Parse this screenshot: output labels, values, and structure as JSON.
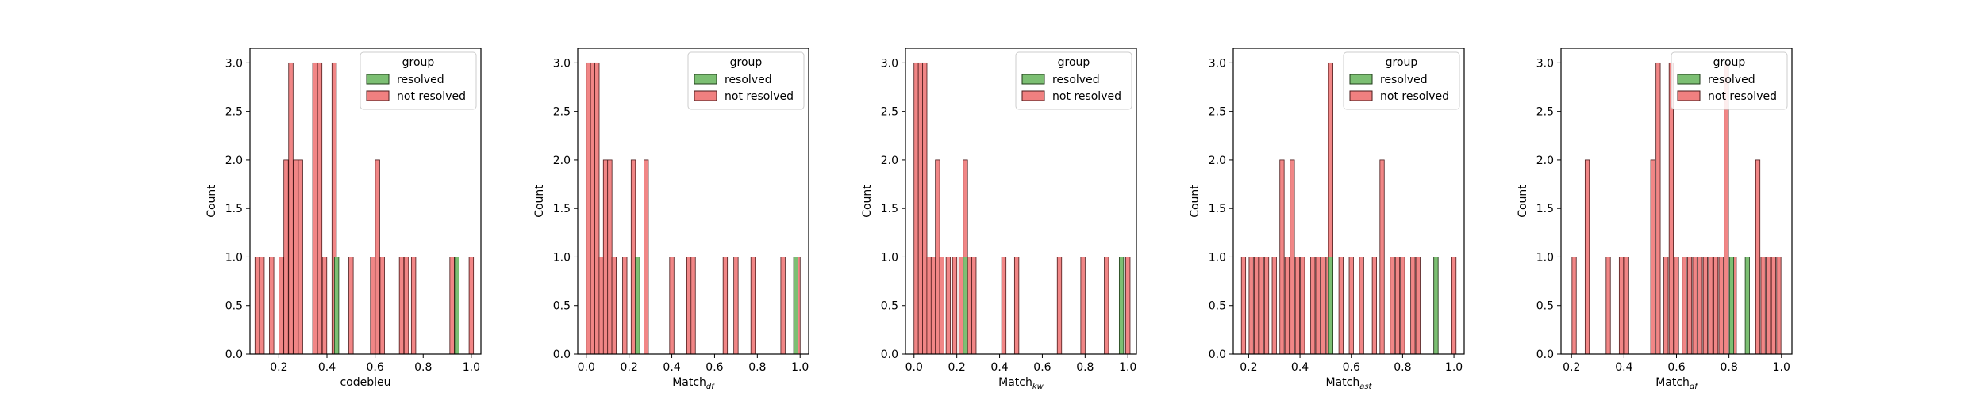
{
  "palette": {
    "resolved_fill": "#7cbf73",
    "resolved_edge": "#1f3b1a",
    "not_resolved_fill": "#f08080",
    "not_resolved_edge": "#4a1b1b",
    "axes": "#000000",
    "legend_edge": "#cccccc"
  },
  "legend": {
    "title": "group",
    "resolved": "resolved",
    "not_resolved": "not resolved"
  },
  "chart_data": [
    {
      "type": "bar",
      "xlabel": "codebleu",
      "ylabel": "Count",
      "xlim": [
        0.08,
        1.04
      ],
      "ylim": [
        0,
        3.15
      ],
      "xticks": [
        "0.2",
        "0.4",
        "0.6",
        "0.8",
        "1.0"
      ],
      "yticks": [
        "0.0",
        "0.5",
        "1.0",
        "1.5",
        "2.0",
        "2.5",
        "3.0"
      ],
      "bin_width": 0.0184,
      "series": [
        {
          "name": "not resolved",
          "bins": [
            [
              0.11,
              1
            ],
            [
              0.13,
              1
            ],
            [
              0.17,
              1
            ],
            [
              0.21,
              1
            ],
            [
              0.23,
              2
            ],
            [
              0.25,
              3
            ],
            [
              0.27,
              2
            ],
            [
              0.29,
              2
            ],
            [
              0.35,
              3
            ],
            [
              0.37,
              3
            ],
            [
              0.39,
              1
            ],
            [
              0.43,
              3
            ],
            [
              0.5,
              1
            ],
            [
              0.59,
              1
            ],
            [
              0.61,
              2
            ],
            [
              0.63,
              1
            ],
            [
              0.71,
              1
            ],
            [
              0.73,
              1
            ],
            [
              0.76,
              1
            ],
            [
              0.92,
              1
            ],
            [
              1.0,
              1
            ]
          ]
        },
        {
          "name": "resolved",
          "bins": [
            [
              0.44,
              1
            ],
            [
              0.94,
              1
            ]
          ]
        }
      ]
    },
    {
      "type": "bar",
      "xlabel": "Match",
      "xlabel_sub": "df",
      "ylabel": "Count",
      "xlim": [
        -0.04,
        1.04
      ],
      "ylim": [
        0,
        3.15
      ],
      "xticks": [
        "0.0",
        "0.2",
        "0.4",
        "0.6",
        "0.8",
        "1.0"
      ],
      "yticks": [
        "0.0",
        "0.5",
        "1.0",
        "1.5",
        "2.0",
        "2.5",
        "3.0"
      ],
      "bin_width": 0.0204,
      "series": [
        {
          "name": "not resolved",
          "bins": [
            [
              0.01,
              3
            ],
            [
              0.03,
              3
            ],
            [
              0.05,
              3
            ],
            [
              0.07,
              1
            ],
            [
              0.09,
              2
            ],
            [
              0.11,
              2
            ],
            [
              0.13,
              1
            ],
            [
              0.18,
              1
            ],
            [
              0.22,
              2
            ],
            [
              0.24,
              1
            ],
            [
              0.28,
              2
            ],
            [
              0.4,
              1
            ],
            [
              0.48,
              1
            ],
            [
              0.5,
              1
            ],
            [
              0.65,
              1
            ],
            [
              0.7,
              1
            ],
            [
              0.78,
              1
            ],
            [
              0.92,
              1
            ],
            [
              0.99,
              1
            ]
          ]
        },
        {
          "name": "resolved",
          "bins": [
            [
              0.24,
              1
            ],
            [
              0.98,
              1
            ]
          ]
        }
      ]
    },
    {
      "type": "bar",
      "xlabel": "Match",
      "xlabel_sub": "kw",
      "ylabel": "Count",
      "xlim": [
        -0.04,
        1.04
      ],
      "ylim": [
        0,
        3.15
      ],
      "xticks": [
        "0.0",
        "0.2",
        "0.4",
        "0.6",
        "0.8",
        "1.0"
      ],
      "yticks": [
        "0.0",
        "0.5",
        "1.0",
        "1.5",
        "2.0",
        "2.5",
        "3.0"
      ],
      "bin_width": 0.0204,
      "series": [
        {
          "name": "not resolved",
          "bins": [
            [
              0.01,
              3
            ],
            [
              0.03,
              3
            ],
            [
              0.05,
              3
            ],
            [
              0.07,
              1
            ],
            [
              0.09,
              1
            ],
            [
              0.11,
              2
            ],
            [
              0.13,
              1
            ],
            [
              0.16,
              1
            ],
            [
              0.19,
              1
            ],
            [
              0.22,
              1
            ],
            [
              0.24,
              2
            ],
            [
              0.26,
              1
            ],
            [
              0.28,
              1
            ],
            [
              0.42,
              1
            ],
            [
              0.48,
              1
            ],
            [
              0.68,
              1
            ],
            [
              0.79,
              1
            ],
            [
              0.9,
              1
            ],
            [
              1.0,
              1
            ]
          ]
        },
        {
          "name": "resolved",
          "bins": [
            [
              0.24,
              1
            ],
            [
              0.97,
              1
            ]
          ]
        }
      ]
    },
    {
      "type": "bar",
      "xlabel": "Match",
      "xlabel_sub": "ast",
      "ylabel": "Count",
      "xlim": [
        0.14,
        1.04
      ],
      "ylim": [
        0,
        3.15
      ],
      "xticks": [
        "0.2",
        "0.4",
        "0.6",
        "0.8",
        "1.0"
      ],
      "yticks": [
        "0.0",
        "0.5",
        "1.0",
        "1.5",
        "2.0",
        "2.5",
        "3.0"
      ],
      "bin_width": 0.0168,
      "series": [
        {
          "name": "not resolved",
          "bins": [
            [
              0.18,
              1
            ],
            [
              0.21,
              1
            ],
            [
              0.23,
              1
            ],
            [
              0.25,
              1
            ],
            [
              0.27,
              1
            ],
            [
              0.3,
              1
            ],
            [
              0.33,
              2
            ],
            [
              0.35,
              1
            ],
            [
              0.37,
              2
            ],
            [
              0.39,
              1
            ],
            [
              0.41,
              1
            ],
            [
              0.45,
              1
            ],
            [
              0.47,
              1
            ],
            [
              0.49,
              1
            ],
            [
              0.51,
              1
            ],
            [
              0.52,
              3
            ],
            [
              0.56,
              1
            ],
            [
              0.6,
              1
            ],
            [
              0.64,
              1
            ],
            [
              0.69,
              1
            ],
            [
              0.72,
              2
            ],
            [
              0.76,
              1
            ],
            [
              0.78,
              1
            ],
            [
              0.8,
              1
            ],
            [
              0.84,
              1
            ],
            [
              0.86,
              1
            ],
            [
              0.93,
              1
            ],
            [
              1.0,
              1
            ]
          ]
        },
        {
          "name": "resolved",
          "bins": [
            [
              0.52,
              1
            ],
            [
              0.93,
              1
            ]
          ]
        }
      ]
    },
    {
      "type": "bar",
      "xlabel": "Match",
      "xlabel_sub": "df",
      "ylabel": "Count",
      "xlim": [
        0.16,
        1.04
      ],
      "ylim": [
        0,
        3.15
      ],
      "xticks": [
        "0.2",
        "0.4",
        "0.6",
        "0.8",
        "1.0"
      ],
      "yticks": [
        "0.0",
        "0.5",
        "1.0",
        "1.5",
        "2.0",
        "2.5",
        "3.0"
      ],
      "bin_width": 0.0163,
      "series": [
        {
          "name": "not resolved",
          "bins": [
            [
              0.21,
              1
            ],
            [
              0.26,
              2
            ],
            [
              0.34,
              1
            ],
            [
              0.39,
              1
            ],
            [
              0.41,
              1
            ],
            [
              0.51,
              2
            ],
            [
              0.53,
              3
            ],
            [
              0.56,
              1
            ],
            [
              0.58,
              3
            ],
            [
              0.6,
              1
            ],
            [
              0.63,
              1
            ],
            [
              0.65,
              1
            ],
            [
              0.67,
              1
            ],
            [
              0.69,
              1
            ],
            [
              0.71,
              1
            ],
            [
              0.73,
              1
            ],
            [
              0.75,
              1
            ],
            [
              0.77,
              1
            ],
            [
              0.79,
              3
            ],
            [
              0.82,
              1
            ],
            [
              0.91,
              2
            ],
            [
              0.93,
              1
            ],
            [
              0.95,
              1
            ],
            [
              0.97,
              1
            ],
            [
              0.99,
              1
            ]
          ]
        },
        {
          "name": "resolved",
          "bins": [
            [
              0.81,
              1
            ],
            [
              0.87,
              1
            ]
          ]
        }
      ]
    }
  ]
}
